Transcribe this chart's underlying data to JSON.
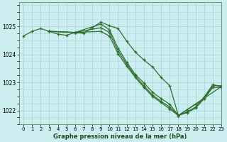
{
  "title": "Graphe pression niveau de la mer (hPa)",
  "bg_color": "#cceef0",
  "grid_color": "#aad4d8",
  "line_color": "#2d6e2d",
  "xlim": [
    -0.5,
    23
  ],
  "ylim": [
    1021.5,
    1025.85
  ],
  "yticks": [
    1022,
    1023,
    1024,
    1025
  ],
  "xticks": [
    0,
    1,
    2,
    3,
    4,
    5,
    6,
    7,
    8,
    9,
    10,
    11,
    12,
    13,
    14,
    15,
    16,
    17,
    18,
    19,
    20,
    21,
    22,
    23
  ],
  "lines": [
    {
      "x": [
        0,
        1,
        2,
        3,
        4,
        5,
        6,
        7,
        8,
        9,
        10,
        11,
        12,
        13,
        14,
        15,
        16,
        17,
        18,
        19,
        20,
        21,
        22,
        23
      ],
      "y": [
        1024.65,
        1024.82,
        1024.92,
        1024.82,
        1024.72,
        1024.68,
        1024.78,
        1024.75,
        1024.95,
        1025.15,
        1025.02,
        1024.92,
        1024.47,
        1024.08,
        1023.8,
        1023.55,
        1023.18,
        1022.88,
        1021.82,
        1022.02,
        1022.22,
        1022.42,
        1022.88,
        1022.88
      ]
    },
    {
      "x": [
        3,
        6,
        9,
        10,
        11,
        12,
        13,
        14,
        15,
        16,
        17,
        18,
        19,
        20,
        21,
        22,
        23
      ],
      "y": [
        1024.82,
        1024.78,
        1025.08,
        1024.88,
        1024.22,
        1023.72,
        1023.28,
        1022.98,
        1022.65,
        1022.42,
        1022.22,
        1021.82,
        1021.95,
        1022.12,
        1022.48,
        1022.92,
        1022.85
      ]
    },
    {
      "x": [
        3,
        6,
        9,
        10,
        11,
        12,
        13,
        14,
        15,
        16,
        17,
        18,
        19,
        20,
        21,
        22,
        23
      ],
      "y": [
        1024.82,
        1024.78,
        1024.95,
        1024.78,
        1024.12,
        1023.65,
        1023.22,
        1022.88,
        1022.55,
        1022.32,
        1022.12,
        1021.82,
        1021.92,
        1022.08,
        1022.42,
        1022.82,
        1022.82
      ]
    },
    {
      "x": [
        3,
        6,
        9,
        10,
        11,
        12,
        13,
        14,
        15,
        16,
        17,
        18,
        23
      ],
      "y": [
        1024.82,
        1024.78,
        1024.82,
        1024.65,
        1024.02,
        1023.58,
        1023.18,
        1022.82,
        1022.5,
        1022.28,
        1022.05,
        1021.82,
        1022.85
      ]
    }
  ]
}
